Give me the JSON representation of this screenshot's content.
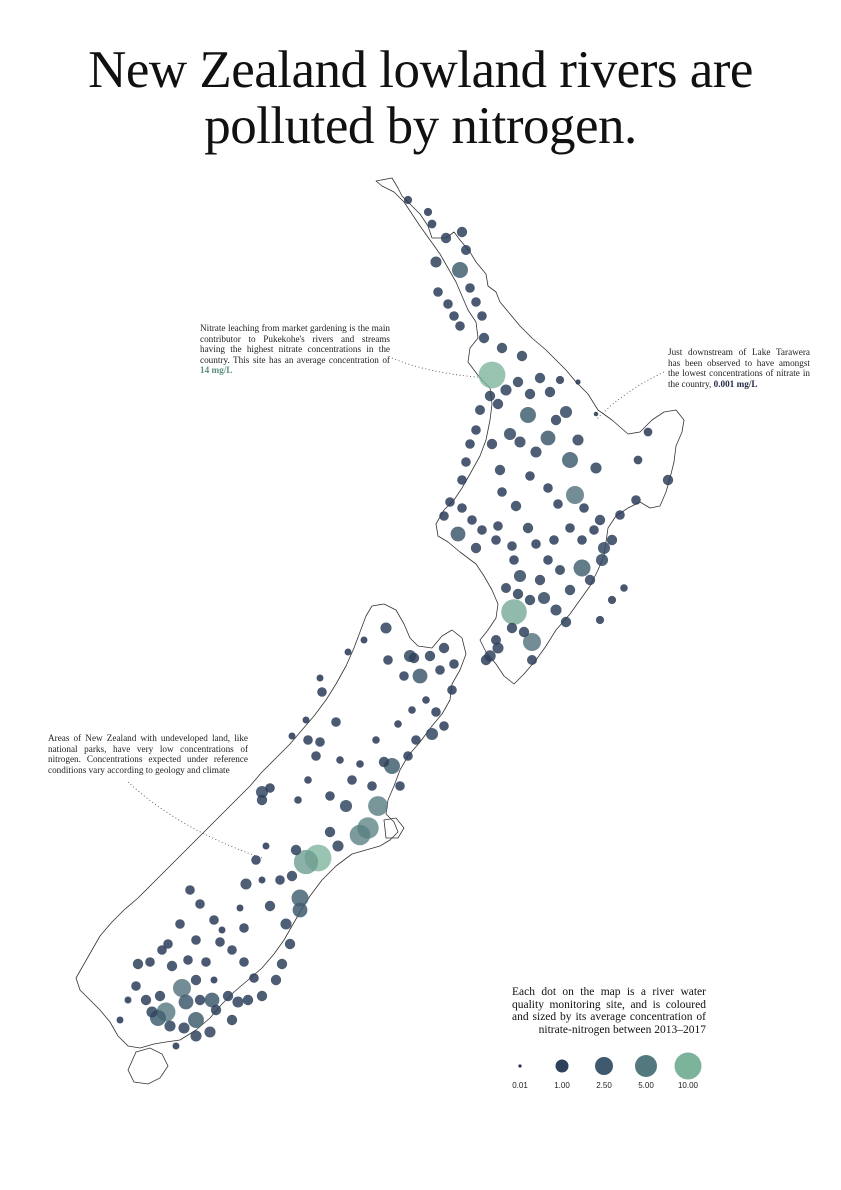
{
  "title_line1": "New Zealand lowland rivers are",
  "title_line2": "polluted by nitrogen.",
  "annotations": {
    "pukekohe_text": "Nitrate leaching from market gardening is the main contributor to Pukekohe's rivers and streams having the highest nitrate concentrations in the country. This site has an average concentration of",
    "pukekohe_value": "14 mg/L",
    "tarawera_text": "Just downstream of Lake Tarawera has been observed to have amongst the lowest concentrations of nitrate in the country,",
    "tarawera_value": "0.001 mg/L",
    "parks_text": "Areas of New Zealand with undeveloped land, like national parks, have very low concentrations of nitrogen. Concentrations expected under reference conditions vary according to geology and climate"
  },
  "legend": {
    "description": "Each dot on the map is a river water quality monitoring site, and is coloured and sized by its average concentration of nitrate-nitrogen between 2013–2017",
    "items": [
      {
        "label": "0.01",
        "value": 0.01
      },
      {
        "label": "1.00",
        "value": 1.0
      },
      {
        "label": "2.50",
        "value": 2.5
      },
      {
        "label": "5.00",
        "value": 5.0
      },
      {
        "label": "10.00",
        "value": 10.0
      }
    ]
  },
  "colors": {
    "low": "#23304f",
    "mid": "#3f5a6e",
    "high": "#7bb39b",
    "coast": "#333333"
  }
}
